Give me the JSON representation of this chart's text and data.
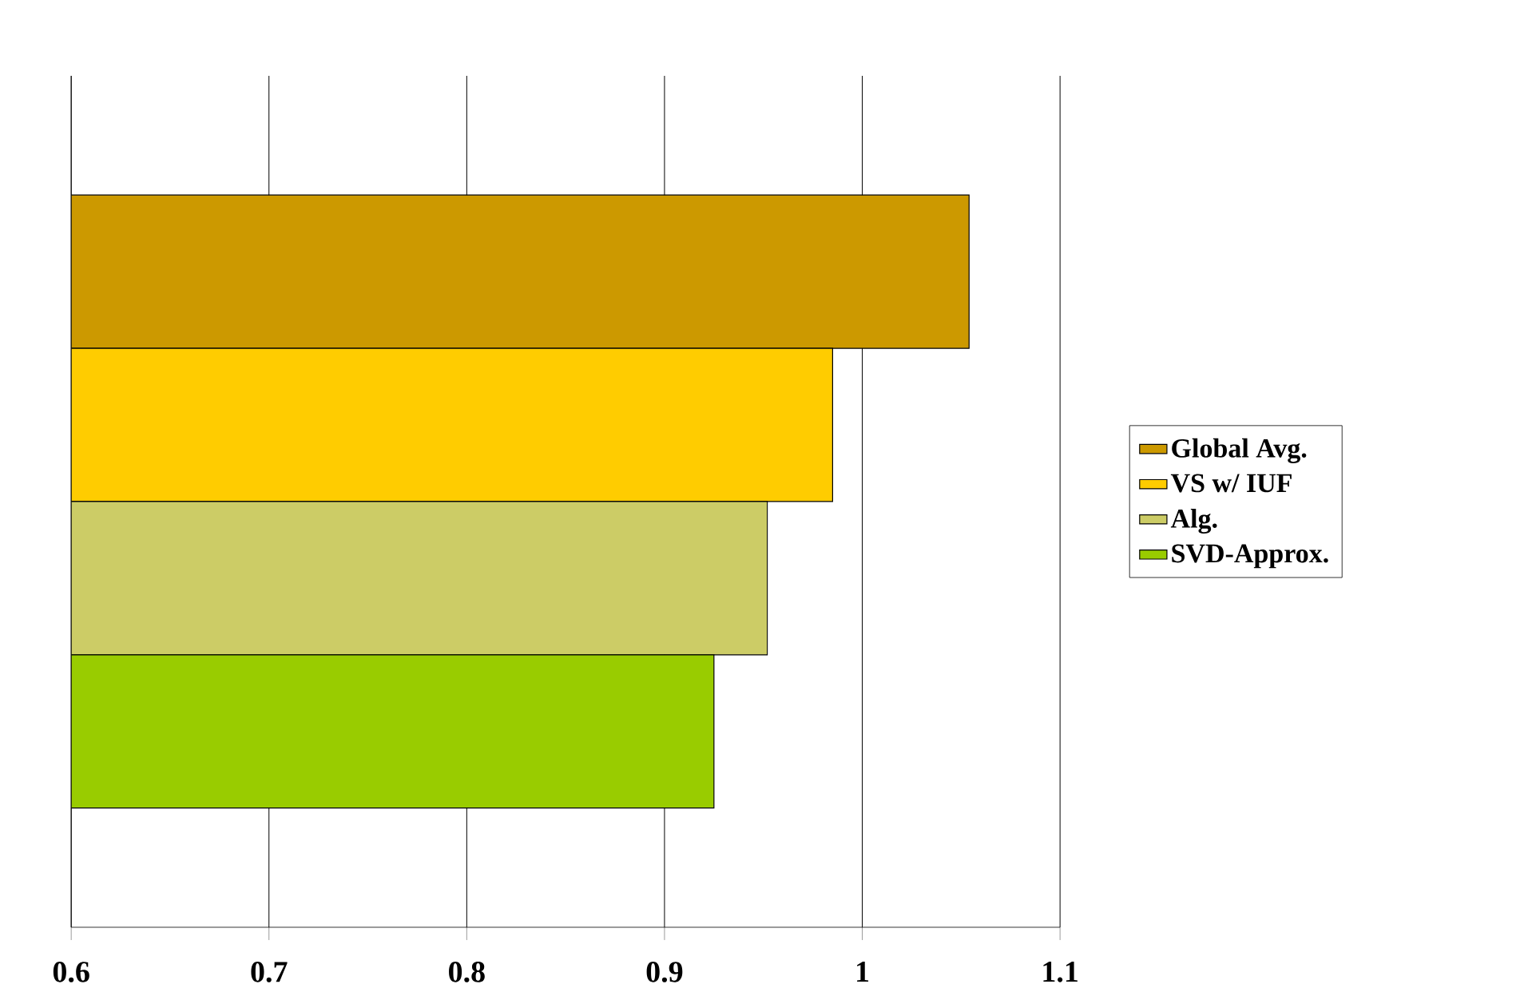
{
  "chart_data": {
    "type": "bar",
    "orientation": "horizontal",
    "categories": [
      null
    ],
    "series": [
      {
        "name": "Global Avg.",
        "color": "#cc9900",
        "values": [
          1.054
        ]
      },
      {
        "name": "VS w/ IUF",
        "color": "#ffcc00",
        "values": [
          0.985
        ]
      },
      {
        "name": "Alg.",
        "color": "#cccc66",
        "values": [
          0.952
        ]
      },
      {
        "name": "SVD-Approx.",
        "color": "#99cc00",
        "values": [
          0.925
        ]
      }
    ],
    "xlim": [
      0.6,
      1.1
    ],
    "xticks": [
      0.6,
      0.7,
      0.8,
      0.9,
      1,
      1.1
    ],
    "grid": "x",
    "legend": "right",
    "tick_labels": "x"
  }
}
